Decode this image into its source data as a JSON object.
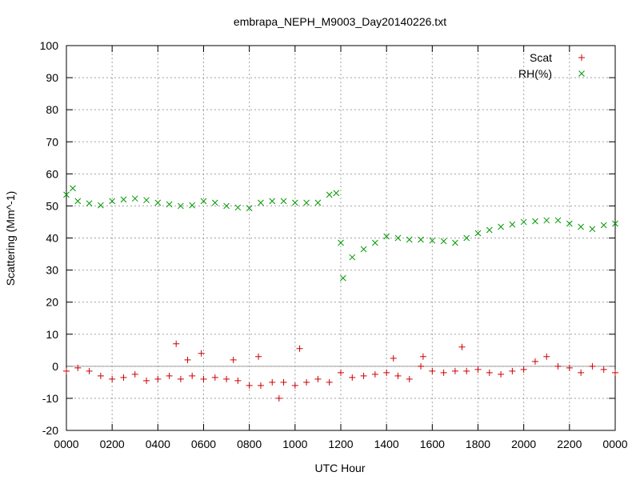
{
  "chart_data": {
    "type": "scatter",
    "title": "embrapa_NEPH_M9003_Day20140226.txt",
    "xlabel": "UTC Hour",
    "ylabel": "Scattering (Mm^-1)",
    "xlim": [
      0,
      24
    ],
    "xticks": [
      {
        "value": 0,
        "label": "0000"
      },
      {
        "value": 2,
        "label": "0200"
      },
      {
        "value": 4,
        "label": "0400"
      },
      {
        "value": 6,
        "label": "0600"
      },
      {
        "value": 8,
        "label": "0800"
      },
      {
        "value": 10,
        "label": "1000"
      },
      {
        "value": 12,
        "label": "1200"
      },
      {
        "value": 14,
        "label": "1400"
      },
      {
        "value": 16,
        "label": "1600"
      },
      {
        "value": 18,
        "label": "1800"
      },
      {
        "value": 20,
        "label": "2000"
      },
      {
        "value": 22,
        "label": "2200"
      },
      {
        "value": 24,
        "label": "0000"
      }
    ],
    "ylim": [
      -20,
      100
    ],
    "yticks": [
      -20,
      -10,
      0,
      10,
      20,
      30,
      40,
      50,
      60,
      70,
      80,
      90,
      100
    ],
    "grid": true,
    "zeroaxis": true,
    "legend": "top-right",
    "series": [
      {
        "name": "Scat",
        "color": "#cc0000",
        "marker": "plus",
        "x": [
          0,
          0.5,
          1,
          1.5,
          2,
          2.5,
          3,
          3.5,
          4,
          4.5,
          4.8,
          5,
          5.3,
          5.5,
          5.9,
          6,
          6.5,
          7,
          7.3,
          7.5,
          8,
          8.4,
          8.5,
          9,
          9.3,
          9.5,
          10,
          10.2,
          10.5,
          11,
          11.5,
          12,
          12.5,
          13,
          13.5,
          14,
          14.3,
          14.5,
          15,
          15.5,
          15.6,
          16,
          16.5,
          17,
          17.3,
          17.5,
          18,
          18.5,
          19,
          19.5,
          20,
          20.5,
          21,
          21.5,
          22,
          22.5,
          23,
          23.5,
          24
        ],
        "values": [
          -1.5,
          -0.5,
          -1.5,
          -3,
          -4,
          -3.5,
          -2.5,
          -4.5,
          -4,
          -3,
          7,
          -4,
          2,
          -3,
          4,
          -4,
          -3.5,
          -4,
          2,
          -4.5,
          -6,
          3,
          -6,
          -5,
          -10,
          -5,
          -6,
          5.5,
          -5,
          -4,
          -5,
          -2,
          -3.5,
          -3,
          -2.5,
          -2,
          2.5,
          -3,
          -4,
          0,
          3,
          -1.5,
          -2,
          -1.5,
          6,
          -1.5,
          -1,
          -2,
          -2.5,
          -1.5,
          -1,
          1.5,
          3,
          0,
          -0.5,
          -2,
          0,
          -1,
          -2
        ]
      },
      {
        "name": "RH(%)",
        "color": "#009900",
        "marker": "cross",
        "x": [
          0,
          0.28,
          0.5,
          1,
          1.5,
          2,
          2.5,
          3,
          3.5,
          4,
          4.5,
          5,
          5.5,
          6,
          6.5,
          7,
          7.5,
          8,
          8.5,
          9,
          9.5,
          10,
          10.5,
          11,
          11.5,
          11.8,
          12,
          12.1,
          12.5,
          13,
          13.5,
          14,
          14.5,
          15,
          15.5,
          16,
          16.5,
          17,
          17.5,
          18,
          18.5,
          19,
          19.5,
          20,
          20.5,
          21,
          21.5,
          22,
          22.5,
          23,
          23.5,
          24
        ],
        "values": [
          53.5,
          55.5,
          51.5,
          50.8,
          50.2,
          51.5,
          52,
          52.3,
          51.8,
          51,
          50.5,
          50,
          50.2,
          51.5,
          51,
          50,
          49.5,
          49.3,
          51,
          51.5,
          51.5,
          51,
          51,
          51,
          53.5,
          54,
          38.5,
          27.5,
          34,
          36.5,
          38.5,
          40.5,
          40,
          39.5,
          39.5,
          39.2,
          39,
          38.5,
          40,
          41.5,
          42.5,
          43.5,
          44.2,
          45,
          45.2,
          45.5,
          45.5,
          44.5,
          43.5,
          42.8,
          44,
          44.5
        ]
      }
    ]
  }
}
